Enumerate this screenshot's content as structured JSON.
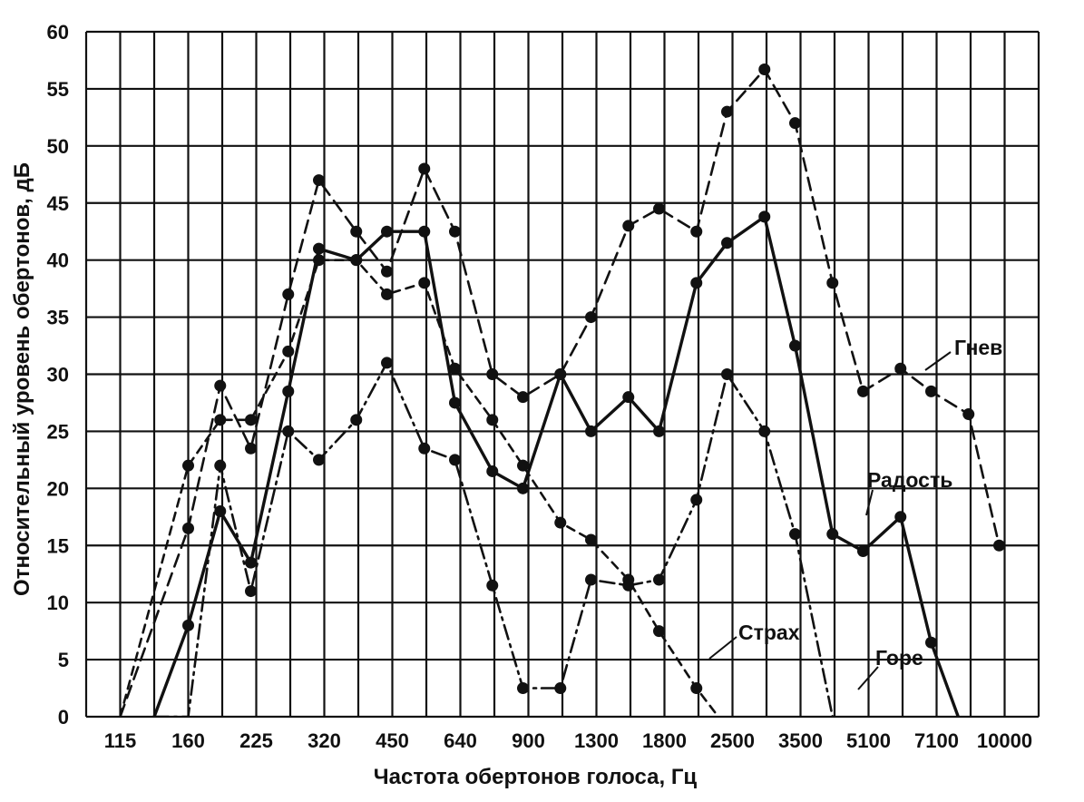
{
  "chart_data": {
    "type": "line",
    "xlabel": "Частота обертонов голоса, Гц",
    "ylabel": "Относительный уровень обертонов, дБ",
    "ylim": [
      0,
      60
    ],
    "y_ticks": [
      0,
      5,
      10,
      15,
      20,
      25,
      30,
      35,
      40,
      45,
      50,
      55,
      60
    ],
    "x_tick_labels": [
      "115",
      "160",
      "225",
      "320",
      "450",
      "640",
      "900",
      "1300",
      "1800",
      "2500",
      "3500",
      "5100",
      "7100",
      "10000"
    ],
    "grid": true,
    "series": [
      {
        "name": "Гнев",
        "style": "dashed",
        "x": [
          0.5,
          1.5,
          1.97,
          2.42,
          2.97,
          3.42,
          3.97,
          4.42,
          4.97,
          5.42,
          5.97,
          6.42,
          6.97,
          7.42,
          7.97,
          8.42,
          8.97,
          9.42,
          9.97,
          10.42,
          10.97,
          11.42,
          11.97,
          12.42,
          12.97,
          13.42
        ],
        "y": [
          0,
          16.5,
          29,
          23.5,
          37,
          47,
          42.5,
          39,
          48,
          42.5,
          30,
          28,
          30,
          35,
          43,
          44.5,
          42.5,
          53,
          56.7,
          52,
          38,
          28.5,
          30.5,
          28.5,
          26.5,
          15
        ]
      },
      {
        "name": "Радость",
        "style": "solid",
        "x": [
          1.0,
          1.5,
          1.97,
          2.42,
          2.97,
          3.42,
          3.97,
          4.42,
          4.97,
          5.42,
          5.97,
          6.42,
          6.97,
          7.42,
          7.97,
          8.42,
          8.97,
          9.42,
          9.97,
          10.42,
          10.97,
          11.42,
          11.97,
          12.42,
          12.97,
          13.42
        ],
        "y": [
          0,
          8,
          18,
          13.5,
          28.5,
          41,
          40,
          42.5,
          42.5,
          27.5,
          21.5,
          20,
          30,
          25,
          28,
          25,
          38,
          41.5,
          43.8,
          32.5,
          16,
          14.5,
          17.5,
          6.5,
          -2.5,
          -2.5
        ]
      },
      {
        "name": "Страх",
        "style": "long-dash",
        "x": [
          0.5,
          1.5,
          1.97,
          2.42,
          2.97,
          3.42,
          3.97,
          4.42,
          4.97,
          5.42,
          5.97,
          6.42,
          6.97,
          7.42,
          7.97,
          8.42,
          8.97,
          9.42,
          9.97
        ],
        "y": [
          0,
          22,
          26,
          26,
          32,
          40,
          40,
          37,
          38,
          30.5,
          26,
          22,
          17,
          15.5,
          12,
          7.5,
          2.5,
          -1,
          -1
        ]
      },
      {
        "name": "Горе",
        "style": "dash-dot",
        "x": [
          1.0,
          1.5,
          1.97,
          2.42,
          2.97,
          3.42,
          3.97,
          4.42,
          4.97,
          5.42,
          5.97,
          6.42,
          6.97,
          7.42,
          7.97,
          8.42,
          8.97,
          9.42,
          9.97,
          10.42,
          10.97,
          11.42
        ],
        "y": [
          0,
          0,
          22,
          11,
          25,
          22.5,
          26,
          31,
          23.5,
          22.5,
          11.5,
          2.5,
          2.5,
          12,
          11.5,
          12,
          19,
          30,
          25,
          16,
          0,
          -1
        ]
      }
    ],
    "annotations": [
      {
        "text": "Гнев",
        "series": "Гнев"
      },
      {
        "text": "Радость",
        "series": "Радость"
      },
      {
        "text": "Страх",
        "series": "Страх"
      },
      {
        "text": "Горе",
        "series": "Горе"
      }
    ]
  }
}
